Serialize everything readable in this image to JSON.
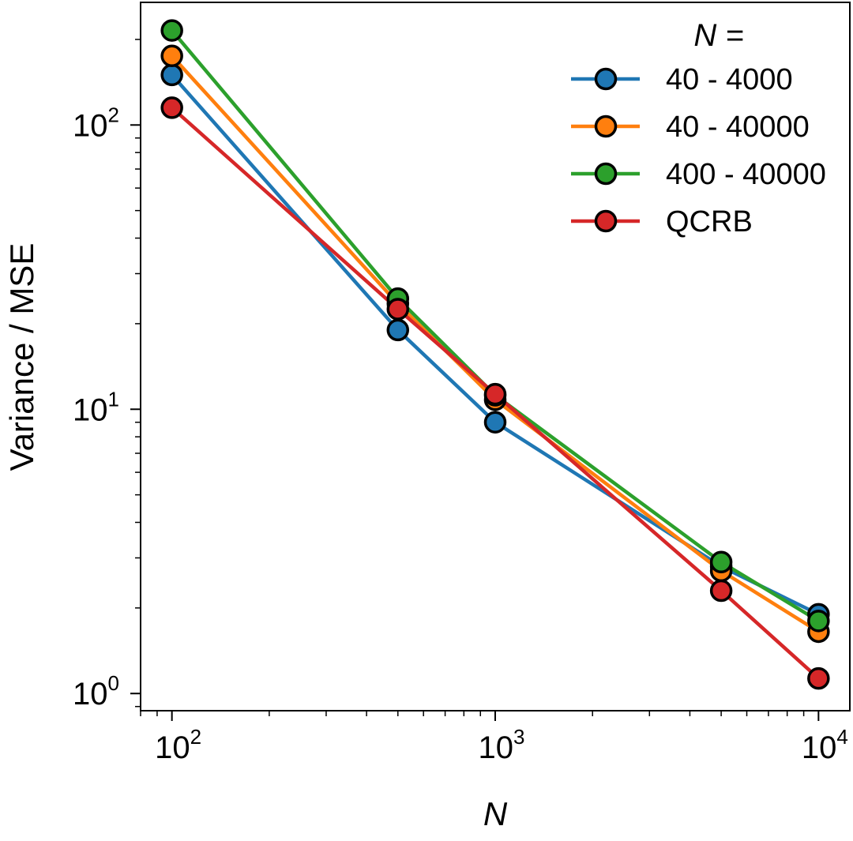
{
  "chart_data": {
    "type": "line",
    "x_scale": "log",
    "y_scale": "log",
    "x": [
      100,
      500,
      1000,
      5000,
      10000
    ],
    "series": [
      {
        "name": "40 - 4000",
        "color": "#1f77b4",
        "values": [
          150,
          19,
          9,
          2.8,
          1.9
        ]
      },
      {
        "name": "40 - 40000",
        "color": "#ff7f0e",
        "values": [
          175,
          23.5,
          10.8,
          2.7,
          1.65
        ]
      },
      {
        "name": "400 - 40000",
        "color": "#2ca02c",
        "values": [
          215,
          24.5,
          11.2,
          2.9,
          1.8
        ]
      },
      {
        "name": "QCRB",
        "color": "#d62728",
        "values": [
          115,
          22.5,
          11.3,
          2.3,
          1.13
        ]
      }
    ],
    "xlim": [
      80,
      12500
    ],
    "ylim": [
      0.87,
      270
    ],
    "x_major_ticks": [
      {
        "value": 100,
        "base": "10",
        "exp": "2"
      },
      {
        "value": 1000,
        "base": "10",
        "exp": "3"
      },
      {
        "value": 10000,
        "base": "10",
        "exp": "4"
      }
    ],
    "y_major_ticks": [
      {
        "value": 1,
        "base": "10",
        "exp": "0"
      },
      {
        "value": 10,
        "base": "10",
        "exp": "1"
      },
      {
        "value": 100,
        "base": "10",
        "exp": "2"
      }
    ],
    "xlabel": "N",
    "ylabel": "Variance / MSE",
    "legend_title": "N =",
    "legend_position": "top-right",
    "grid": false
  }
}
